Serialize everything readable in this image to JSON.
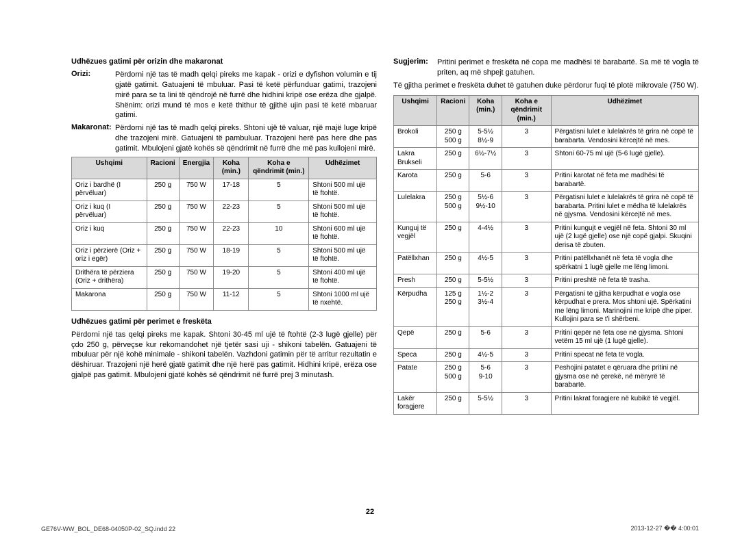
{
  "left": {
    "title1": "Udhëzues gatimi për orizin dhe makaronat",
    "orizi_label": "Orizi:",
    "orizi_text": "Përdorni një tas të madh qelqi pireks me kapak - orizi e dyfishon volumin e tij gjatë gatimit. Gatuajeni të mbuluar. Pasi të ketë përfunduar gatimi, trazojeni mirë para se ta lini të qëndrojë në furrë dhe hidhini kripë ose erëza dhe gjalpë. Shënim: orizi mund të mos e ketë thithur të gjithë ujin pasi të ketë mbaruar gatimi.",
    "makaronat_label": "Makaronat:",
    "makaronat_text": "Përdorni një tas të madh qelqi pireks. Shtoni ujë të valuar, një majë luge kripë dhe trazojeni mirë. Gatuajeni të pambuluar. Trazojeni herë pas here dhe pas gatimit. Mbulojeni gjatë kohës së qëndrimit në furrë dhe më pas kullojeni mirë.",
    "t1_headers": [
      "Ushqimi",
      "Racioni",
      "Energjia",
      "Koha (min.)",
      "Koha e qëndrimit (min.)",
      "Udhëzimet"
    ],
    "t1_rows": [
      [
        "Oriz i bardhë (I përvëluar)",
        "250 g",
        "750 W",
        "17-18",
        "5",
        "Shtoni 500 ml ujë të ftohtë."
      ],
      [
        "Oriz i kuq (I përvëluar)",
        "250 g",
        "750 W",
        "22-23",
        "5",
        "Shtoni 500 ml ujë të ftohtë."
      ],
      [
        "Oriz i kuq",
        "250 g",
        "750 W",
        "22-23",
        "10",
        "Shtoni 600 ml ujë të ftohtë."
      ],
      [
        "Oriz i përzierë (Oriz + oriz i egër)",
        "250 g",
        "750 W",
        "18-19",
        "5",
        "Shtoni 500 ml ujë të ftohtë."
      ],
      [
        "Drithëra të përziera (Oriz + drithëra)",
        "250 g",
        "750 W",
        "19-20",
        "5",
        "Shtoni 400 ml ujë të ftohtë."
      ],
      [
        "Makarona",
        "250 g",
        "750 W",
        "11-12",
        "5",
        "Shtoni 1000 ml ujë të nxehtë."
      ]
    ],
    "title2": "Udhëzues gatimi për perimet e freskëta",
    "para2": "Përdorni një tas qelqi pireks me kapak. Shtoni 30-45 ml ujë të ftohtë (2-3 lugë gjelle) për çdo 250 g, përveçse kur rekomandohet një tjetër sasi uji - shikoni tabelën. Gatuajeni të mbuluar për një kohë minimale - shikoni tabelën. Vazhdoni gatimin për të arritur rezultatin e dëshiruar. Trazojeni një herë gjatë gatimit dhe një herë pas gatimit. Hidhini kripë, erëza ose gjalpë pas gatimit. Mbulojeni gjatë kohës së qëndrimit në furrë prej 3 minutash."
  },
  "right": {
    "sugjerim_label": "Sugjerim:",
    "sugjerim_text": "Pritini perimet e freskëta në copa me madhësi të barabartë. Sa më të vogla të priten, aq më shpejt gatuhen.",
    "para_top": "Të gjitha perimet e freskëta duhet të gatuhen duke përdorur fuqi të plotë mikrovale (750 W).",
    "t2_headers": [
      "Ushqimi",
      "Racioni",
      "Koha (min.)",
      "Koha e qëndrimit (min.)",
      "Udhëzimet"
    ],
    "t2_rows": [
      [
        "Brokoli",
        "250 g\n500 g",
        "5-5½\n8½-9",
        "3",
        "Përgatisni lulet e lulelakrës të grira në copë të barabarta. Vendosini kërcejtë në mes."
      ],
      [
        "Lakra Brukseli",
        "250 g",
        "6½-7½",
        "3",
        "Shtoni 60-75 ml ujë (5-6 lugë gjelle)."
      ],
      [
        "Karota",
        "250 g",
        "5-6",
        "3",
        "Pritini karotat në feta me madhësi të barabartë."
      ],
      [
        "Lulelakra",
        "250 g\n500 g",
        "5½-6\n9½-10",
        "3",
        "Përgatisni lulet e lulelakrës të grira në copë të barabarta. Pritini lulet e mëdha të lulelakrës në gjysma. Vendosini kërcejtë në mes."
      ],
      [
        "Kunguj të vegjël",
        "250 g",
        "4-4½",
        "3",
        "Pritini kungujt e vegjël në feta. Shtoni 30 ml ujë (2 lugë gjelle) ose një copë gjalpi. Skuqini derisa të zbuten."
      ],
      [
        "Patëllxhan",
        "250 g",
        "4½-5",
        "3",
        "Pritini patëllxhanët në feta të vogla dhe spërkatni 1 lugë gjelle me lëng limoni."
      ],
      [
        "Presh",
        "250 g",
        "5-5½",
        "3",
        "Pritini preshtë në feta të trasha."
      ],
      [
        "Kërpudha",
        "125 g\n250 g",
        "1½-2\n3½-4",
        "3",
        "Përgatisni të gjitha kërpudhat e vogla ose kërpudhat e prera. Mos shtoni ujë. Spërkatini me lëng limoni. Marinojini me kripë dhe piper. Kullojini para se t'i shërbeni."
      ],
      [
        "Qepë",
        "250 g",
        "5-6",
        "3",
        "Pritini qepër në feta ose në gjysma. Shtoni vetëm 15 ml ujë (1 lugë gjelle)."
      ],
      [
        "Speca",
        "250 g",
        "4½-5",
        "3",
        "Pritini specat në feta të vogla."
      ],
      [
        "Patate",
        "250 g\n500 g",
        "5-6\n9-10",
        "3",
        "Peshojini patatet e qëruara dhe pritini në gjysma ose në çerekë, në mënyrë të barabartë."
      ],
      [
        "Lakër foragjere",
        "250 g",
        "5-5½",
        "3",
        "Pritini lakrat foragjere në kubikë të vegjël."
      ]
    ]
  },
  "page_number": "22",
  "footer_left": "GE76V-WW_BOL_DE68-04050P-02_SQ.indd   22",
  "footer_right": "2013-12-27   �� 4:00:01"
}
